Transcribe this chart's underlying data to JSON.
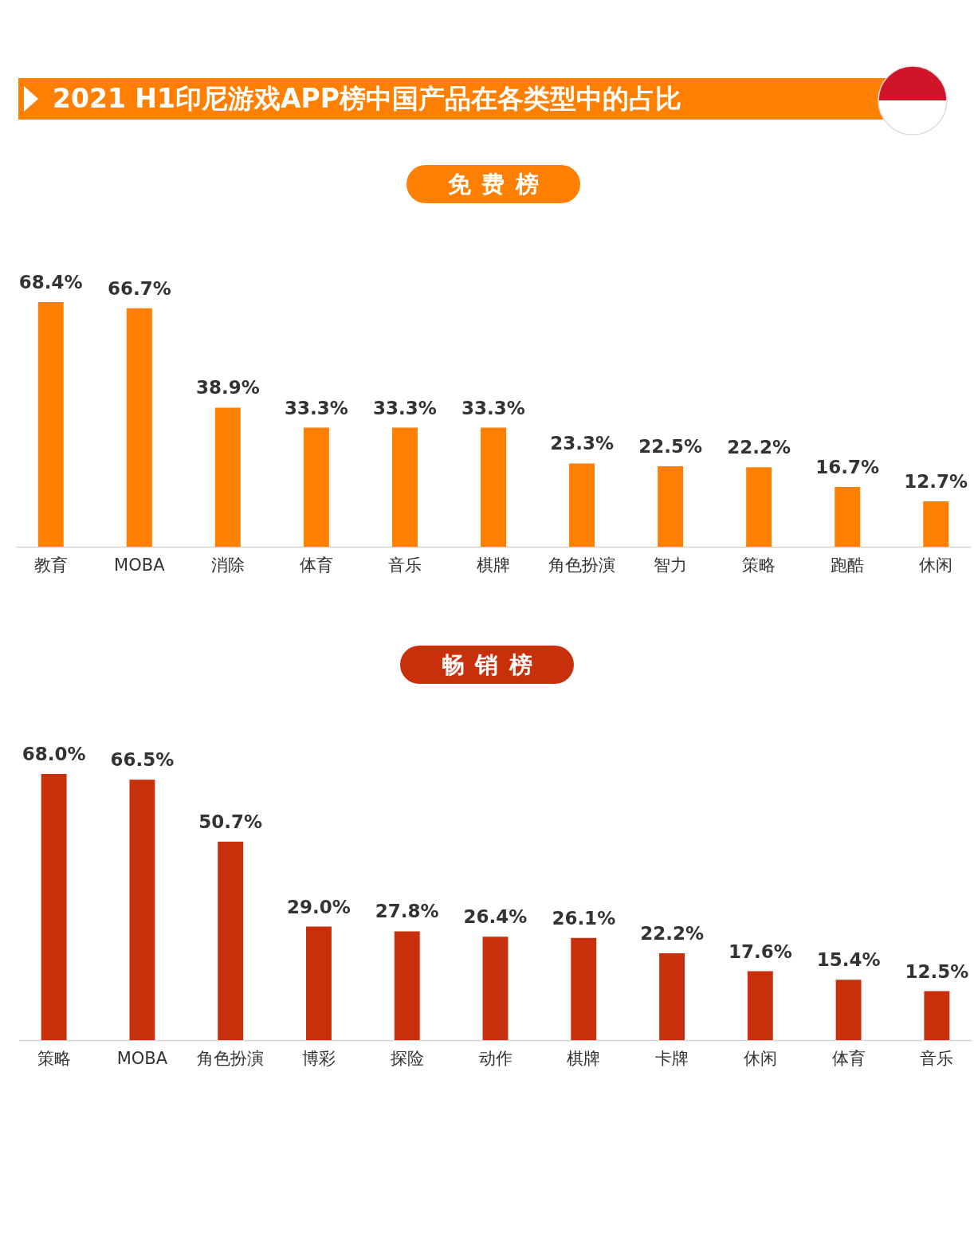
{
  "chart_data": [
    {
      "type": "bar",
      "title": "2021 H1印尼游戏APP榜中国产品在各类型中的占比",
      "subtitle": "免费榜",
      "categories": [
        "教育",
        "MOBA",
        "消除",
        "体育",
        "音乐",
        "棋牌",
        "角色扮演",
        "智力",
        "策略",
        "跑酷",
        "休闲"
      ],
      "values": [
        68.4,
        66.7,
        38.9,
        33.3,
        33.3,
        33.3,
        23.3,
        22.5,
        22.2,
        16.7,
        12.7
      ],
      "value_labels": [
        "68.4%",
        "66.7%",
        "38.9%",
        "33.3%",
        "33.3%",
        "33.3%",
        "23.3%",
        "22.5%",
        "22.2%",
        "16.7%",
        "12.7%"
      ],
      "color": "#ff8000"
    },
    {
      "type": "bar",
      "title": "畅销榜",
      "categories": [
        "策略",
        "MOBA",
        "角色扮演",
        "博彩",
        "探险",
        "动作",
        "棋牌",
        "卡牌",
        "休闲",
        "体育",
        "音乐"
      ],
      "values": [
        68.0,
        66.5,
        50.7,
        29.0,
        27.8,
        26.4,
        26.1,
        22.2,
        17.6,
        15.4,
        12.5
      ],
      "value_labels": [
        "68.0%",
        "66.5%",
        "50.7%",
        "29.0%",
        "27.8%",
        "26.4%",
        "26.1%",
        "22.2%",
        "17.6%",
        "15.4%",
        "12.5%"
      ],
      "color": "#c8300c"
    }
  ]
}
